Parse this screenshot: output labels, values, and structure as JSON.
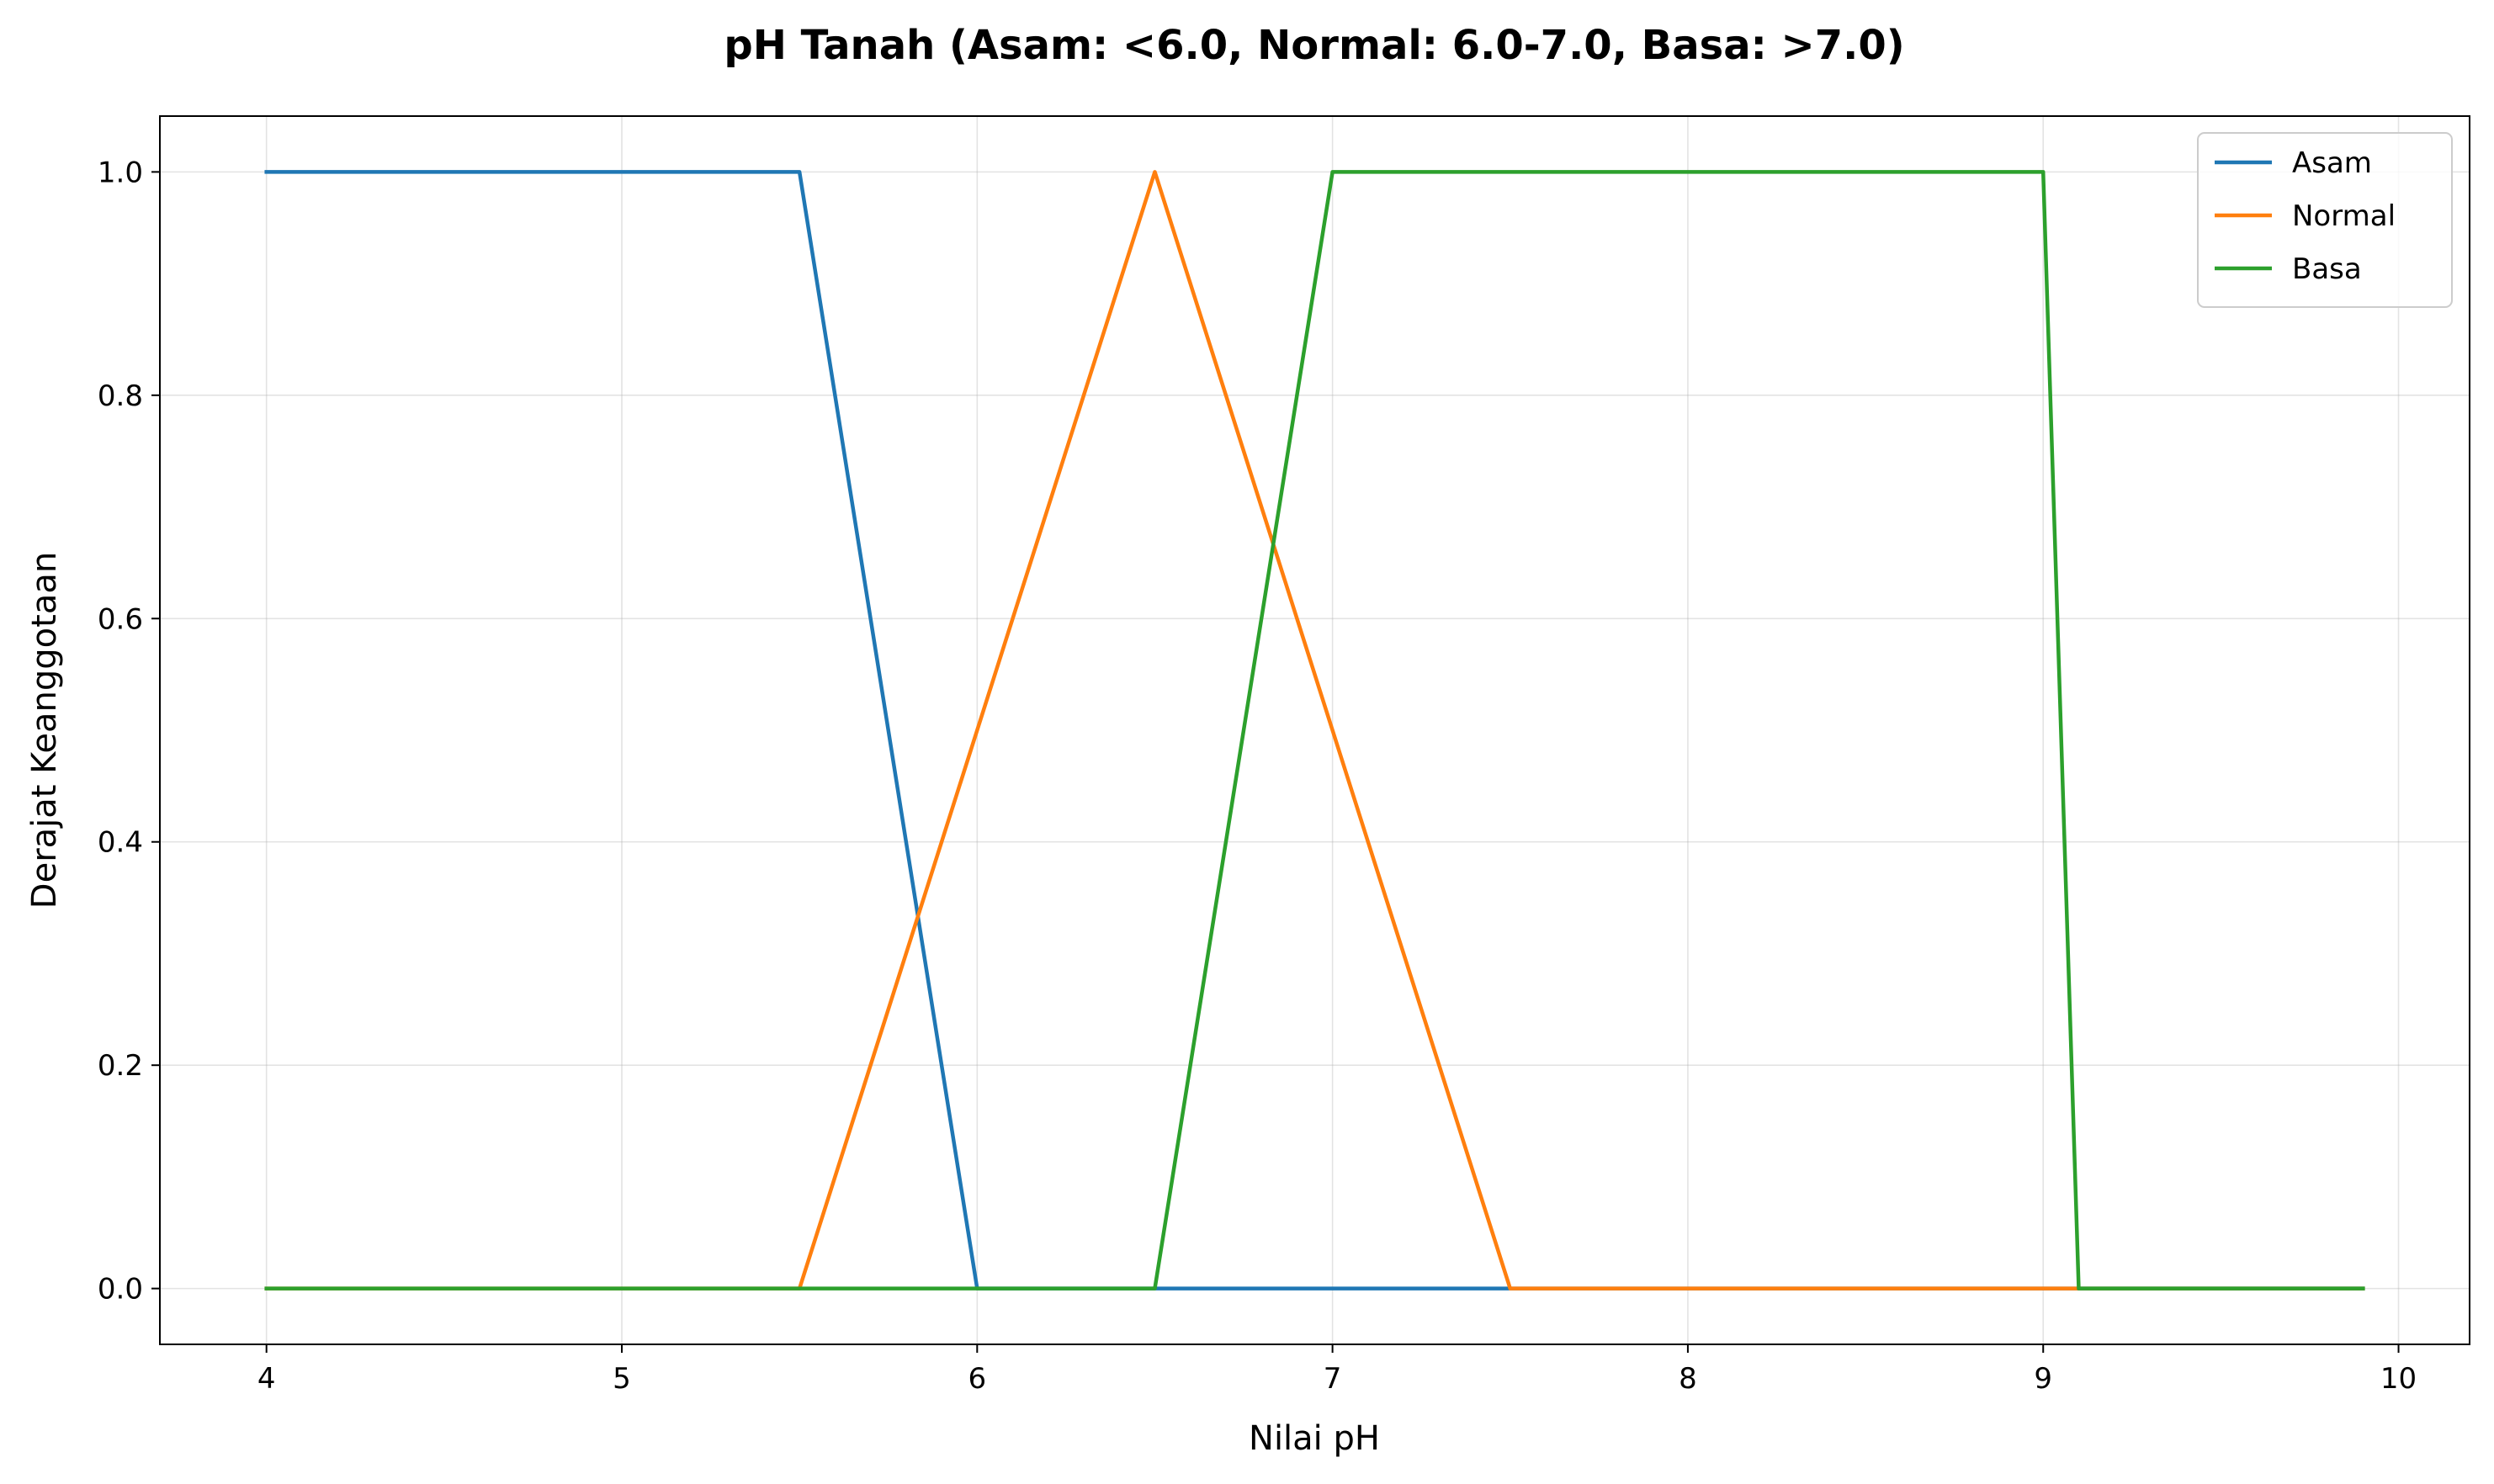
{
  "chart_data": {
    "type": "line",
    "title": "pH Tanah (Asam: <6.0, Normal: 6.0-7.0, Basa: >7.0)",
    "xlabel": "Nilai pH",
    "ylabel": "Derajat Keanggotaan",
    "xlim": [
      3.7,
      10.2
    ],
    "ylim": [
      -0.05,
      1.05
    ],
    "xticks": [
      4,
      5,
      6,
      7,
      8,
      9,
      10
    ],
    "yticks": [
      0.0,
      0.2,
      0.4,
      0.6,
      0.8,
      1.0
    ],
    "xtick_labels": [
      "4",
      "5",
      "6",
      "7",
      "8",
      "9",
      "10"
    ],
    "ytick_labels": [
      "0.0",
      "0.2",
      "0.4",
      "0.6",
      "0.8",
      "1.0"
    ],
    "grid": true,
    "legend_position": "top-right",
    "series": [
      {
        "name": "Asam",
        "color": "#1f77b4",
        "x": [
          4.0,
          5.5,
          6.0,
          9.9
        ],
        "y": [
          1.0,
          1.0,
          0.0,
          0.0
        ]
      },
      {
        "name": "Normal",
        "color": "#ff7f0e",
        "x": [
          4.0,
          5.5,
          6.5,
          7.5,
          9.9
        ],
        "y": [
          0.0,
          0.0,
          1.0,
          0.0,
          0.0
        ]
      },
      {
        "name": "Basa",
        "color": "#2ca02c",
        "x": [
          4.0,
          6.5,
          7.0,
          9.0,
          9.1,
          9.9
        ],
        "y": [
          0.0,
          0.0,
          1.0,
          1.0,
          0.0,
          0.0
        ]
      }
    ]
  }
}
